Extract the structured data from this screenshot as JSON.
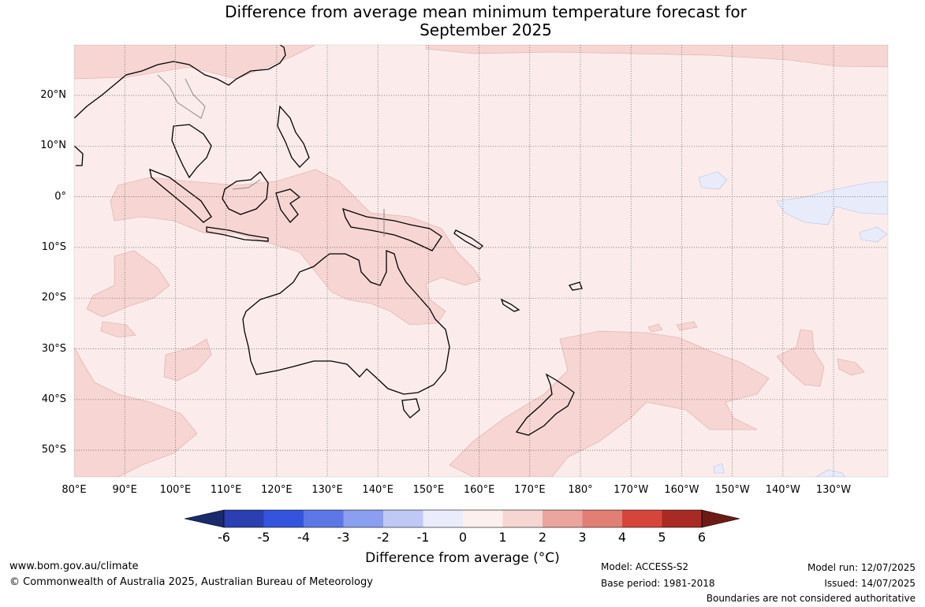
{
  "title": {
    "line1": "Difference from average mean minimum temperature forecast for",
    "line2": "September 2025"
  },
  "axes": {
    "lat_labels": [
      "20°N",
      "10°N",
      "0°",
      "10°S",
      "20°S",
      "30°S",
      "40°S",
      "50°S"
    ],
    "lon_labels": [
      "80°E",
      "90°E",
      "100°E",
      "110°E",
      "120°E",
      "130°E",
      "140°E",
      "150°E",
      "160°E",
      "170°E",
      "180°",
      "170°W",
      "160°W",
      "150°W",
      "140°W",
      "130°W"
    ]
  },
  "legend": {
    "ticks": [
      "-6",
      "-5",
      "-4",
      "-3",
      "-2",
      "-1",
      "0",
      "1",
      "2",
      "3",
      "4",
      "5",
      "6"
    ],
    "colors": [
      "#1a2a6c",
      "#2a3fb0",
      "#3355dd",
      "#5b78e6",
      "#8a9ff0",
      "#c0c8f5",
      "#eaecfc",
      "#fdf0ec",
      "#f6d5d2",
      "#eba59d",
      "#e27f73",
      "#d6453a",
      "#a92a23",
      "#6e1a14"
    ],
    "label": "Difference from average (°C)"
  },
  "map": {
    "region": "Australia, Maritime Continent and South-West Pacific",
    "background_color": "#fbeceb",
    "anomaly_0_1_color": "#fbeceb",
    "anomaly_1_2_color": "#f6d5d2",
    "anomaly_neg_color": "#e8ebfa"
  },
  "footer": {
    "website": "www.bom.gov.au/climate",
    "copyright": "© Commonwealth of Australia 2025, Australian Bureau of Meteorology",
    "model": "Model: ACCESS-S2",
    "base_period": "Base period: 1981-2018",
    "model_run": "Model run: 12/07/2025",
    "issued": "Issued: 14/07/2025",
    "disclaimer": "Boundaries are not considered authoritative"
  }
}
